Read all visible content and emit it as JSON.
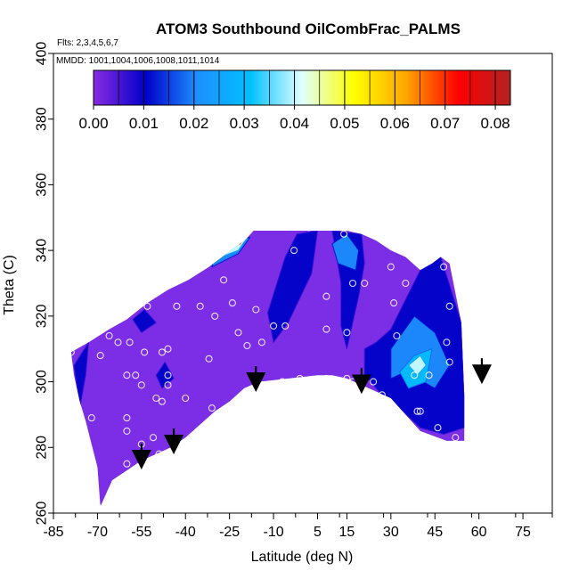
{
  "chart_data": {
    "type": "heatmap",
    "title": "ATOM3 Southbound OilCombFrac_PALMS",
    "annotations": [
      "Flts: 2,3,4,5,6,7",
      "MMDD: 1001,1004,1006,1008,1011,1014"
    ],
    "xlabel": "Latitude (deg N)",
    "ylabel": "Theta (C)",
    "xlim": [
      -85,
      85
    ],
    "ylim": [
      260,
      400
    ],
    "x_ticks": [
      -85,
      -70,
      -55,
      -40,
      -25,
      -10,
      5,
      15,
      30,
      45,
      60,
      75
    ],
    "y_ticks": [
      260,
      280,
      300,
      320,
      340,
      360,
      380,
      400
    ],
    "colorbar": {
      "range": [
        0,
        0.083
      ],
      "ticks": [
        "0.00",
        "0.01",
        "0.02",
        "0.03",
        "0.04",
        "0.05",
        "0.06",
        "0.07",
        "0.08"
      ],
      "colors": [
        "#8a2be2",
        "#0000c8",
        "#1e90ff",
        "#00bfff",
        "#e0ffff",
        "#ffff00",
        "#ffa500",
        "#ff0000",
        "#b22222"
      ],
      "placement": "top"
    },
    "grid": false,
    "fill_color": "#7b2ee6",
    "low_color": "#0000c8",
    "mid_color": "#1e8fff",
    "high_color": "#e0ffff",
    "max_color": "#ff0000",
    "domain_boundary": [
      [
        -79,
        309
      ],
      [
        -73,
        312
      ],
      [
        -66,
        316
      ],
      [
        -60,
        319
      ],
      [
        -53,
        324
      ],
      [
        -46,
        328
      ],
      [
        -39,
        331
      ],
      [
        -32,
        335
      ],
      [
        -26,
        339
      ],
      [
        -20,
        343
      ],
      [
        -17,
        346
      ],
      [
        5,
        346
      ],
      [
        13,
        346
      ],
      [
        15,
        346
      ],
      [
        20,
        345
      ],
      [
        25,
        343
      ],
      [
        30,
        340
      ],
      [
        35,
        338
      ],
      [
        40,
        334
      ],
      [
        44,
        336
      ],
      [
        47,
        338
      ],
      [
        50,
        336
      ],
      [
        54,
        318
      ],
      [
        55,
        296
      ],
      [
        55,
        282
      ],
      [
        49,
        282
      ],
      [
        40,
        285
      ],
      [
        35,
        290
      ],
      [
        30,
        295
      ],
      [
        25,
        297
      ],
      [
        20,
        299
      ],
      [
        15,
        301
      ],
      [
        10,
        302
      ],
      [
        5,
        302
      ],
      [
        -15,
        300
      ],
      [
        -20,
        298
      ],
      [
        -25,
        294
      ],
      [
        -30,
        291
      ],
      [
        -35,
        287
      ],
      [
        -40,
        283
      ],
      [
        -45,
        280
      ],
      [
        -50,
        278
      ],
      [
        -55,
        276
      ],
      [
        -60,
        273
      ],
      [
        -65,
        270
      ],
      [
        -69,
        262
      ],
      [
        -70,
        274
      ],
      [
        -72,
        281
      ],
      [
        -74,
        288
      ],
      [
        -76,
        294
      ],
      [
        -78,
        302
      ]
    ],
    "contour_regions": [
      {
        "level": 0.01,
        "polygon": [
          [
            -6,
            338
          ],
          [
            -2,
            345
          ],
          [
            5,
            346
          ],
          [
            3,
            333
          ],
          [
            -5,
            318
          ],
          [
            -10,
            312
          ],
          [
            -12,
            321
          ]
        ]
      },
      {
        "level": 0.01,
        "polygon": [
          [
            10,
            346
          ],
          [
            20,
            345
          ],
          [
            21,
            336
          ],
          [
            19,
            326
          ],
          [
            17,
            318
          ],
          [
            15,
            310
          ],
          [
            13,
            317
          ],
          [
            13,
            330
          ]
        ]
      },
      {
        "level": 0.01,
        "polygon": [
          [
            21,
            310
          ],
          [
            25,
            312
          ],
          [
            30,
            316
          ],
          [
            35,
            325
          ],
          [
            40,
            334
          ],
          [
            47,
            338
          ],
          [
            54,
            318
          ],
          [
            55,
            296
          ],
          [
            55,
            286
          ],
          [
            48,
            284
          ],
          [
            40,
            286
          ],
          [
            34,
            291
          ],
          [
            27,
            296
          ],
          [
            21,
            302
          ]
        ]
      },
      {
        "level": 0.02,
        "polygon": [
          [
            30,
            301
          ],
          [
            35,
            303
          ],
          [
            45,
            298
          ],
          [
            50,
            305
          ],
          [
            45,
            315
          ],
          [
            38,
            320
          ],
          [
            30,
            310
          ]
        ]
      },
      {
        "level": 0.03,
        "polygon": [
          [
            33,
            303
          ],
          [
            38,
            308
          ],
          [
            44,
            310
          ],
          [
            42,
            300
          ],
          [
            36,
            298
          ]
        ]
      },
      {
        "level": 0.04,
        "polygon": [
          [
            36,
            305
          ],
          [
            40,
            308
          ],
          [
            42,
            305
          ],
          [
            39,
            302
          ]
        ]
      },
      {
        "level": 0.02,
        "polygon": [
          [
            10,
            342
          ],
          [
            15,
            345
          ],
          [
            19,
            340
          ],
          [
            18,
            334
          ],
          [
            12,
            336
          ]
        ]
      },
      {
        "level": 0.01,
        "polygon": [
          [
            -50,
            302
          ],
          [
            -47,
            306
          ],
          [
            -44,
            301
          ],
          [
            -48,
            298
          ]
        ]
      },
      {
        "level": 0.01,
        "polygon": [
          [
            -58,
            319
          ],
          [
            -54,
            322
          ],
          [
            -50,
            318
          ],
          [
            -55,
            315
          ]
        ]
      },
      {
        "level": 0.01,
        "polygon": [
          [
            -76,
            292
          ],
          [
            -74,
            302
          ],
          [
            -73,
            312
          ],
          [
            -78,
            305
          ]
        ]
      },
      {
        "level": 0.02,
        "polygon": [
          [
            -31,
            335
          ],
          [
            -22,
            339
          ],
          [
            -18,
            344
          ],
          [
            -24,
            343
          ],
          [
            -30,
            339
          ]
        ]
      },
      {
        "level": 0.04,
        "polygon": [
          [
            -28,
            338
          ],
          [
            -22,
            340
          ],
          [
            -19,
            344
          ],
          [
            -25,
            342
          ]
        ]
      },
      {
        "level": 0.07,
        "polygon": [
          [
            -22,
            341
          ],
          [
            -19,
            344
          ],
          [
            -17,
            346
          ],
          [
            -21,
            345
          ]
        ]
      }
    ],
    "measurement_points": [
      [
        -79,
        309
      ],
      [
        -72,
        289
      ],
      [
        -70,
        262
      ],
      [
        -69,
        308
      ],
      [
        -66,
        314
      ],
      [
        -63,
        312
      ],
      [
        -60,
        275
      ],
      [
        -60,
        285
      ],
      [
        -60,
        289
      ],
      [
        -60,
        302
      ],
      [
        -59,
        312
      ],
      [
        -57,
        302
      ],
      [
        -55,
        281
      ],
      [
        -55,
        299
      ],
      [
        -54,
        309
      ],
      [
        -53,
        323
      ],
      [
        -51,
        283
      ],
      [
        -50,
        295
      ],
      [
        -49,
        278
      ],
      [
        -48,
        294
      ],
      [
        -48,
        309
      ],
      [
        -46,
        299
      ],
      [
        -46,
        302
      ],
      [
        -46,
        310
      ],
      [
        -44,
        282
      ],
      [
        -43,
        323
      ],
      [
        -40,
        295
      ],
      [
        -35,
        323
      ],
      [
        -32,
        307
      ],
      [
        -31,
        292
      ],
      [
        -30,
        320
      ],
      [
        -27,
        331
      ],
      [
        -24,
        324
      ],
      [
        -22,
        315
      ],
      [
        -19,
        311
      ],
      [
        -16,
        322
      ],
      [
        -14,
        312
      ],
      [
        -10,
        317
      ],
      [
        -7,
        300
      ],
      [
        -6,
        317
      ],
      [
        -3,
        340
      ],
      [
        -1,
        301
      ],
      [
        2,
        347
      ],
      [
        8,
        326
      ],
      [
        8,
        316
      ],
      [
        8,
        301
      ],
      [
        15,
        301
      ],
      [
        15,
        315
      ],
      [
        17,
        300
      ],
      [
        17,
        330
      ],
      [
        21,
        330
      ],
      [
        24,
        300
      ],
      [
        27,
        296
      ],
      [
        30,
        335
      ],
      [
        31,
        324
      ],
      [
        32,
        314
      ],
      [
        35,
        330
      ],
      [
        38,
        302
      ],
      [
        39,
        291
      ],
      [
        40,
        291
      ],
      [
        43,
        302
      ],
      [
        46,
        286
      ],
      [
        48,
        335
      ],
      [
        49,
        312
      ],
      [
        50,
        306
      ],
      [
        50,
        323
      ],
      [
        52,
        283
      ],
      [
        55,
        329
      ],
      [
        56,
        337
      ],
      [
        58,
        283
      ],
      [
        14,
        345
      ]
    ],
    "arrows": [
      -55,
      -44,
      -16,
      20,
      61
    ]
  }
}
